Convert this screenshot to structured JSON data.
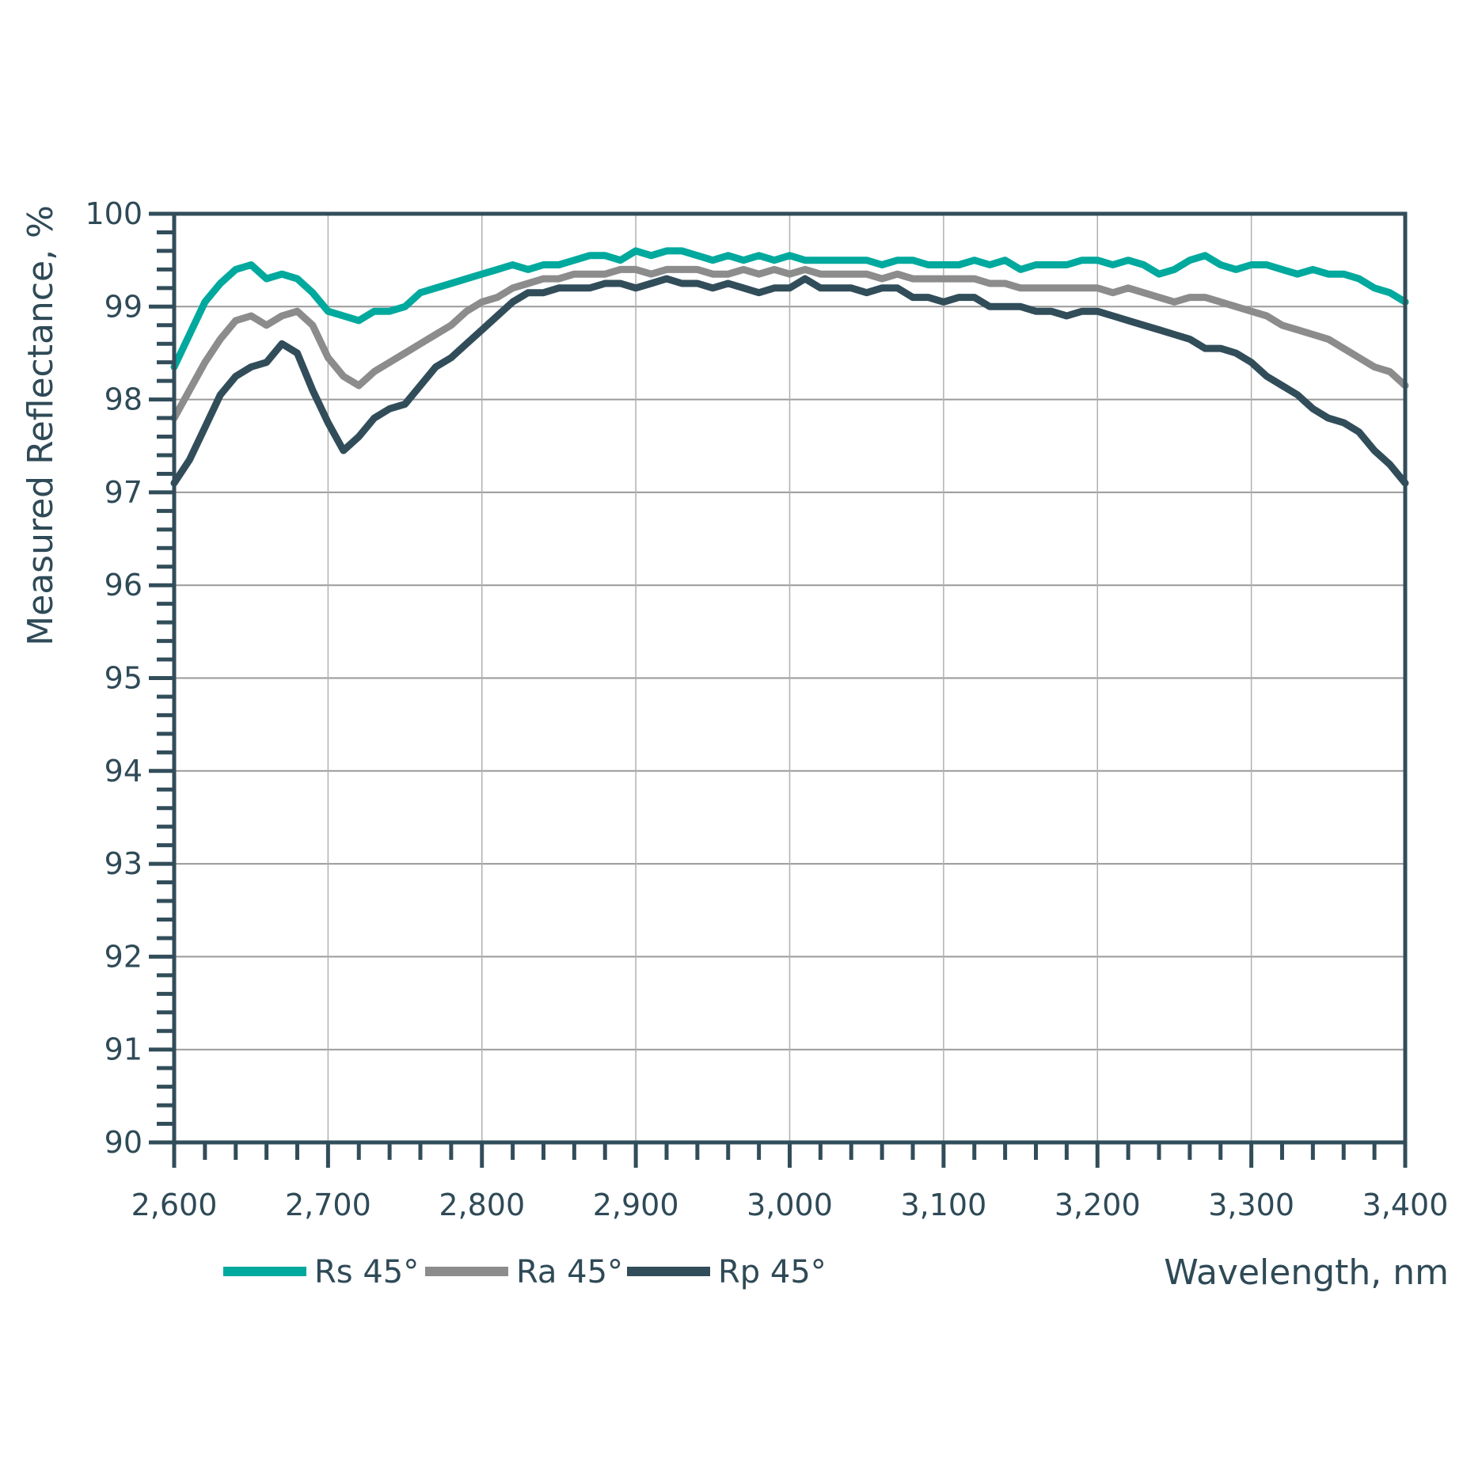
{
  "chart_data": {
    "type": "line",
    "title": "",
    "xlabel": "Wavelength, nm",
    "ylabel": "Measured Reflectance, %",
    "xlim": [
      2600,
      3400
    ],
    "ylim": [
      90,
      100
    ],
    "x_ticks": [
      2600,
      2700,
      2800,
      2900,
      3000,
      3100,
      3200,
      3300,
      3400
    ],
    "x_tick_labels": [
      "2,600",
      "2,700",
      "2,800",
      "2,900",
      "3,000",
      "3,100",
      "3,200",
      "3,300",
      "3,400"
    ],
    "y_ticks": [
      90,
      91,
      92,
      93,
      94,
      95,
      96,
      97,
      98,
      99,
      100
    ],
    "y_tick_labels": [
      "90",
      "91",
      "92",
      "93",
      "94",
      "95",
      "96",
      "97",
      "98",
      "99",
      "100"
    ],
    "grid": true,
    "legend_position": "bottom-left",
    "x": [
      2600,
      2610,
      2620,
      2630,
      2640,
      2650,
      2660,
      2670,
      2680,
      2690,
      2700,
      2710,
      2720,
      2730,
      2740,
      2750,
      2760,
      2770,
      2780,
      2790,
      2800,
      2810,
      2820,
      2830,
      2840,
      2850,
      2860,
      2870,
      2880,
      2890,
      2900,
      2910,
      2920,
      2930,
      2940,
      2950,
      2960,
      2970,
      2980,
      2990,
      3000,
      3010,
      3020,
      3030,
      3040,
      3050,
      3060,
      3070,
      3080,
      3090,
      3100,
      3110,
      3120,
      3130,
      3140,
      3150,
      3160,
      3170,
      3180,
      3190,
      3200,
      3210,
      3220,
      3230,
      3240,
      3250,
      3260,
      3270,
      3280,
      3290,
      3300,
      3310,
      3320,
      3330,
      3340,
      3350,
      3360,
      3370,
      3380,
      3390,
      3400
    ],
    "series": [
      {
        "name": "Rs 45°",
        "color": "#00a99d",
        "values": [
          98.35,
          98.7,
          99.05,
          99.25,
          99.4,
          99.45,
          99.3,
          99.35,
          99.3,
          99.15,
          98.95,
          98.9,
          98.85,
          98.95,
          98.95,
          99.0,
          99.15,
          99.2,
          99.25,
          99.3,
          99.35,
          99.4,
          99.45,
          99.4,
          99.45,
          99.45,
          99.5,
          99.55,
          99.55,
          99.5,
          99.6,
          99.55,
          99.6,
          99.6,
          99.55,
          99.5,
          99.55,
          99.5,
          99.55,
          99.5,
          99.55,
          99.5,
          99.5,
          99.5,
          99.5,
          99.5,
          99.45,
          99.5,
          99.5,
          99.45,
          99.45,
          99.45,
          99.5,
          99.45,
          99.5,
          99.4,
          99.45,
          99.45,
          99.45,
          99.5,
          99.5,
          99.45,
          99.5,
          99.45,
          99.35,
          99.4,
          99.5,
          99.55,
          99.45,
          99.4,
          99.45,
          99.45,
          99.4,
          99.35,
          99.4,
          99.35,
          99.35,
          99.3,
          99.2,
          99.15,
          99.05
        ]
      },
      {
        "name": "Ra 45°",
        "color": "#8c8c8c",
        "values": [
          97.8,
          98.1,
          98.4,
          98.65,
          98.85,
          98.9,
          98.8,
          98.9,
          98.95,
          98.8,
          98.45,
          98.25,
          98.15,
          98.3,
          98.4,
          98.5,
          98.6,
          98.7,
          98.8,
          98.95,
          99.05,
          99.1,
          99.2,
          99.25,
          99.3,
          99.3,
          99.35,
          99.35,
          99.35,
          99.4,
          99.4,
          99.35,
          99.4,
          99.4,
          99.4,
          99.35,
          99.35,
          99.4,
          99.35,
          99.4,
          99.35,
          99.4,
          99.35,
          99.35,
          99.35,
          99.35,
          99.3,
          99.35,
          99.3,
          99.3,
          99.3,
          99.3,
          99.3,
          99.25,
          99.25,
          99.2,
          99.2,
          99.2,
          99.2,
          99.2,
          99.2,
          99.15,
          99.2,
          99.15,
          99.1,
          99.05,
          99.1,
          99.1,
          99.05,
          99.0,
          98.95,
          98.9,
          98.8,
          98.75,
          98.7,
          98.65,
          98.55,
          98.45,
          98.35,
          98.3,
          98.15
        ]
      },
      {
        "name": "Rp 45°",
        "color": "#324d5a",
        "values": [
          97.1,
          97.35,
          97.7,
          98.05,
          98.25,
          98.35,
          98.4,
          98.6,
          98.5,
          98.1,
          97.75,
          97.45,
          97.6,
          97.8,
          97.9,
          97.95,
          98.15,
          98.35,
          98.45,
          98.6,
          98.75,
          98.9,
          99.05,
          99.15,
          99.15,
          99.2,
          99.2,
          99.2,
          99.25,
          99.25,
          99.2,
          99.25,
          99.3,
          99.25,
          99.25,
          99.2,
          99.25,
          99.2,
          99.15,
          99.2,
          99.2,
          99.3,
          99.2,
          99.2,
          99.2,
          99.15,
          99.2,
          99.2,
          99.1,
          99.1,
          99.05,
          99.1,
          99.1,
          99.0,
          99.0,
          99.0,
          98.95,
          98.95,
          98.9,
          98.95,
          98.95,
          98.9,
          98.85,
          98.8,
          98.75,
          98.7,
          98.65,
          98.55,
          98.55,
          98.5,
          98.4,
          98.25,
          98.15,
          98.05,
          97.9,
          97.8,
          97.75,
          97.65,
          97.45,
          97.3,
          97.1
        ]
      }
    ]
  }
}
